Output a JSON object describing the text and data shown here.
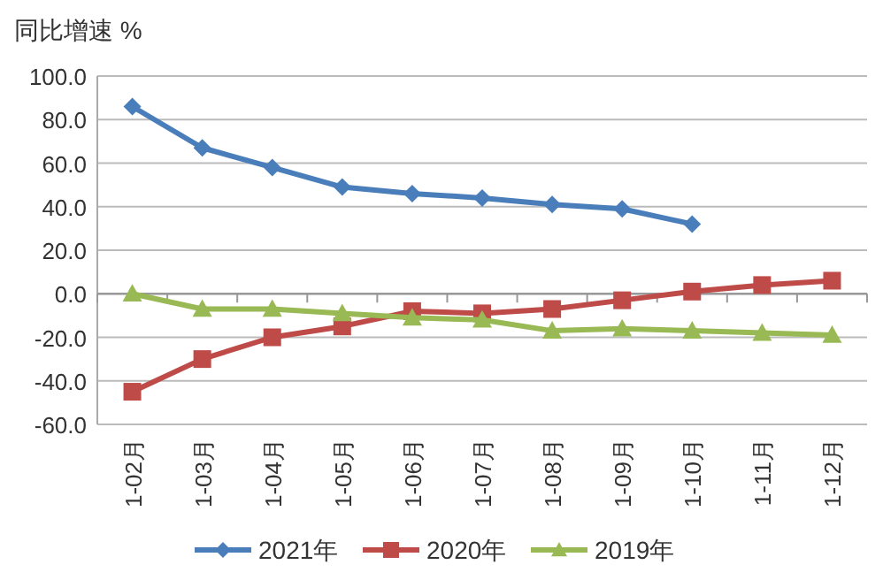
{
  "chart_data": {
    "type": "line",
    "ylabel": "同比增速 %",
    "categories": [
      "1-02月",
      "1-03月",
      "1-04月",
      "1-05月",
      "1-06月",
      "1-07月",
      "1-08月",
      "1-09月",
      "1-10月",
      "1-11月",
      "1-12月"
    ],
    "series": [
      {
        "name": "2021年",
        "color": "#4a7ebb",
        "marker": "diamond",
        "values": [
          86,
          67,
          58,
          49,
          46,
          44,
          41,
          39,
          32,
          null,
          null
        ]
      },
      {
        "name": "2020年",
        "color": "#be4b48",
        "marker": "square",
        "values": [
          -45,
          -30,
          -20,
          -15,
          -8,
          -9,
          -7,
          -3,
          1,
          4,
          6
        ]
      },
      {
        "name": "2019年",
        "color": "#98b954",
        "marker": "triangle",
        "values": [
          0,
          -7,
          -7,
          -9,
          -11,
          -12,
          -17,
          -16,
          -17,
          -18,
          -19
        ]
      }
    ],
    "ylim": [
      -60,
      100
    ],
    "yticks": [
      {
        "value": -60,
        "label": "-60.0"
      },
      {
        "value": -40,
        "label": "-40.0"
      },
      {
        "value": -20,
        "label": "-20.0"
      },
      {
        "value": 0,
        "label": "0.0"
      },
      {
        "value": 20,
        "label": "20.0"
      },
      {
        "value": 40,
        "label": "40.0"
      },
      {
        "value": 60,
        "label": "60.0"
      },
      {
        "value": 80,
        "label": "80.0"
      },
      {
        "value": 100,
        "label": "100.0"
      }
    ],
    "grid": "y",
    "legend": "bottom"
  }
}
